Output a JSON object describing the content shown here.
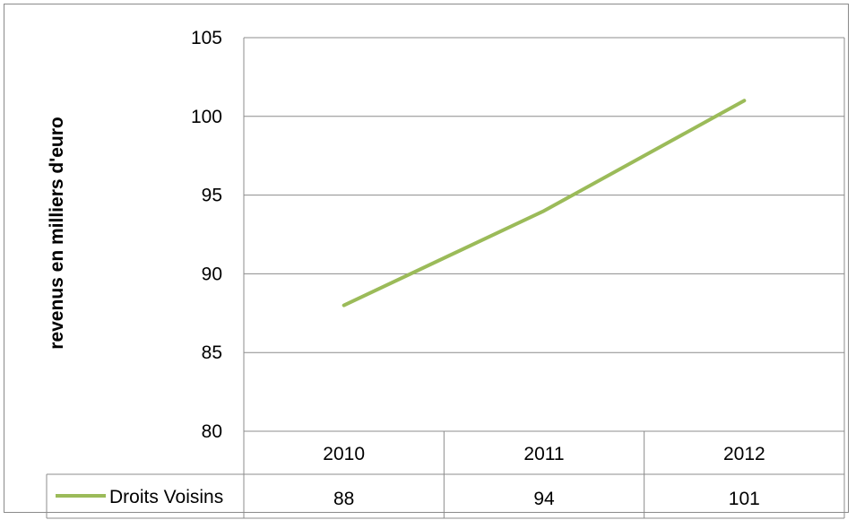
{
  "chart_data": {
    "type": "line",
    "ylabel": "revenus en milliers d'euro",
    "categories": [
      "2010",
      "2011",
      "2012"
    ],
    "series": [
      {
        "name": "Droits Voisins",
        "values": [
          88,
          94,
          101
        ],
        "color": "#9bbb59"
      }
    ],
    "ylim": [
      80,
      105
    ],
    "yticks": [
      105,
      100,
      95,
      90,
      85,
      80
    ],
    "grid": true,
    "data_table": true,
    "gridline_color": "#8c8c8c"
  }
}
